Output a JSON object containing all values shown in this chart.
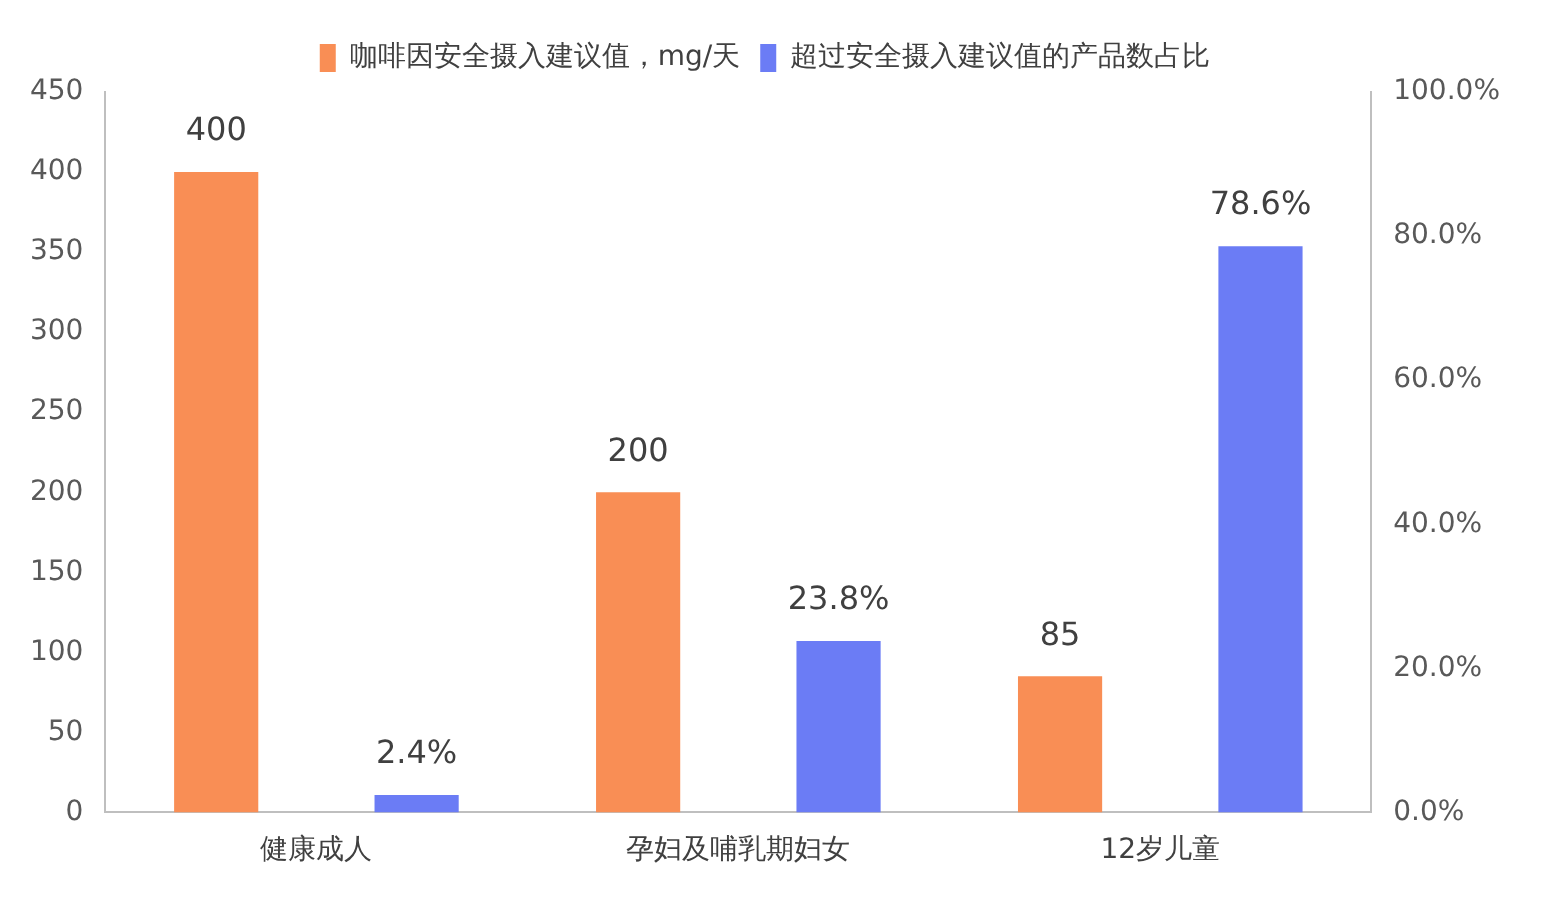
{
  "chart_data": {
    "type": "bar",
    "categories": [
      "健康成人",
      "孕妇及哺乳期妇女",
      "12岁儿童"
    ],
    "series": [
      {
        "name": "咖啡因安全摄入建议值，mg/天",
        "color": "#f98e55",
        "values": [
          400,
          200,
          85
        ],
        "value_labels": [
          "400",
          "200",
          "85"
        ]
      },
      {
        "name": "超过安全摄入建议值的产品数占比",
        "color": "#6b7cf5",
        "values": [
          2.4,
          23.8,
          78.6
        ],
        "axis": "y2",
        "value_labels": [
          "2.4%",
          "23.8%",
          "78.6%"
        ]
      }
    ],
    "ylim": [
      0,
      450
    ],
    "yticks": [
      0,
      50,
      100,
      150,
      200,
      250,
      300,
      350,
      400,
      450
    ],
    "y2lim": [
      0,
      100
    ],
    "y2ticks": [
      {
        "value": 0,
        "label": "0.0%"
      },
      {
        "value": 20,
        "label": "20.0%"
      },
      {
        "value": 40,
        "label": "40.0%"
      },
      {
        "value": 60,
        "label": "60.0%"
      },
      {
        "value": 80,
        "label": "80.0%"
      },
      {
        "value": 100,
        "label": "100.0%"
      }
    ],
    "grid": false,
    "legend": "top"
  }
}
